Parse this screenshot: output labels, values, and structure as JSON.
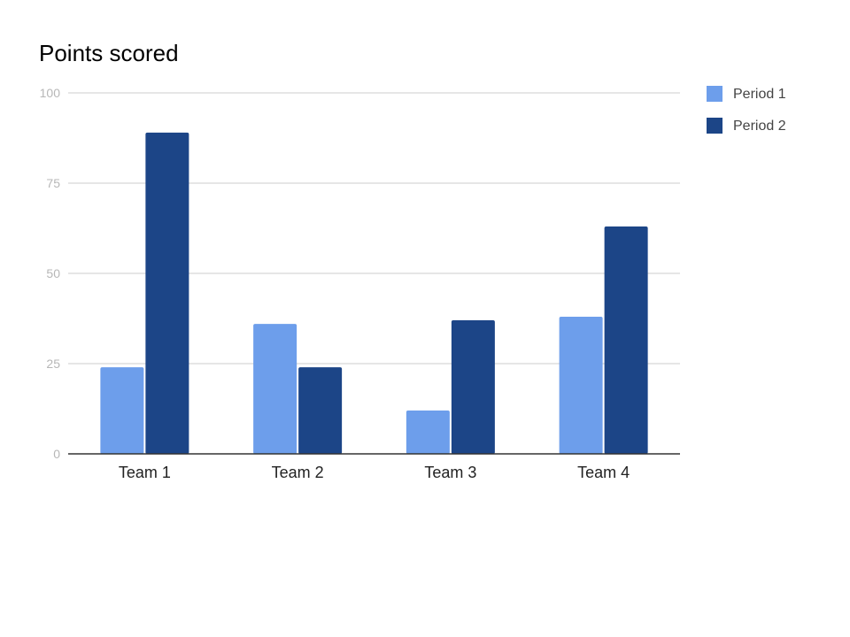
{
  "chart_data": {
    "type": "bar",
    "title": "Points scored",
    "xlabel": "",
    "ylabel": "",
    "categories": [
      "Team 1",
      "Team 2",
      "Team 3",
      "Team 4"
    ],
    "series": [
      {
        "name": "Period 1",
        "color": "#6d9eeb",
        "values": [
          24,
          36,
          12,
          38
        ]
      },
      {
        "name": "Period 2",
        "color": "#1c4587",
        "values": [
          89,
          24,
          37,
          63
        ]
      }
    ],
    "ylim": [
      0,
      100
    ],
    "yticks": [
      "0",
      "25",
      "50",
      "75",
      "100"
    ],
    "grid": true,
    "legend_position": "right"
  }
}
